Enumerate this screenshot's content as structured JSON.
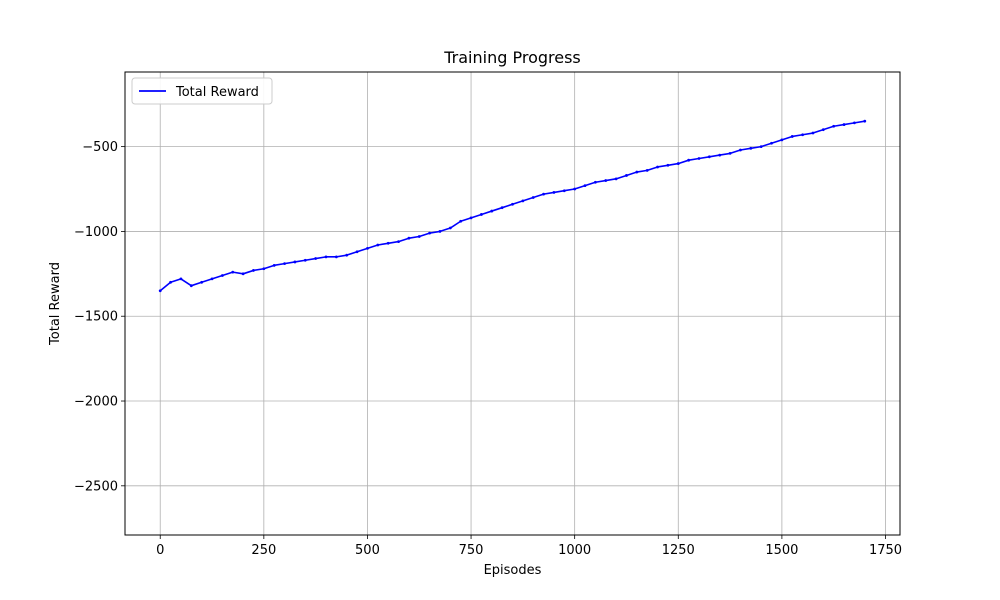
{
  "chart_data": {
    "type": "line",
    "title": "Training Progress",
    "xlabel": "Episodes",
    "ylabel": "Total Reward",
    "xlim": [
      -85,
      1785
    ],
    "ylim": [
      -2790,
      -60
    ],
    "xticks": [
      0,
      250,
      500,
      750,
      1000,
      1250,
      1500,
      1750
    ],
    "yticks": [
      -2500,
      -2000,
      -1500,
      -1000,
      -500
    ],
    "xtick_labels": [
      "0",
      "250",
      "500",
      "750",
      "1000",
      "1250",
      "1500",
      "1750"
    ],
    "ytick_labels": [
      "−2500",
      "−2000",
      "−1500",
      "−1000",
      "−500"
    ],
    "grid": true,
    "legend": {
      "position": "top-left",
      "entries": [
        "Total Reward"
      ]
    },
    "series": [
      {
        "name": "Total Reward",
        "color": "#0000ff",
        "x": [
          0,
          25,
          50,
          75,
          100,
          125,
          150,
          175,
          200,
          225,
          250,
          275,
          300,
          325,
          350,
          375,
          400,
          425,
          450,
          475,
          500,
          525,
          550,
          575,
          600,
          625,
          650,
          675,
          700,
          725,
          750,
          775,
          800,
          825,
          850,
          875,
          900,
          925,
          950,
          975,
          1000,
          1025,
          1050,
          1075,
          1100,
          1125,
          1150,
          1175,
          1200,
          1225,
          1250,
          1275,
          1300,
          1325,
          1350,
          1375,
          1400,
          1425,
          1450,
          1475,
          1500,
          1525,
          1550,
          1575,
          1600,
          1625,
          1650,
          1675,
          1700
        ],
        "y": [
          -1350,
          -1300,
          -1280,
          -1320,
          -1300,
          -1280,
          -1260,
          -1240,
          -1250,
          -1230,
          -1220,
          -1200,
          -1190,
          -1180,
          -1170,
          -1160,
          -1150,
          -1150,
          -1140,
          -1120,
          -1100,
          -1080,
          -1070,
          -1060,
          -1040,
          -1030,
          -1010,
          -1000,
          -980,
          -940,
          -920,
          -900,
          -880,
          -860,
          -840,
          -820,
          -800,
          -780,
          -770,
          -760,
          -750,
          -730,
          -710,
          -700,
          -690,
          -670,
          -650,
          -640,
          -620,
          -610,
          -600,
          -580,
          -570,
          -560,
          -550,
          -540,
          -520,
          -510,
          -500,
          -480,
          -460,
          -440,
          -430,
          -420,
          -400,
          -380,
          -370,
          -360,
          -350
        ]
      }
    ]
  }
}
